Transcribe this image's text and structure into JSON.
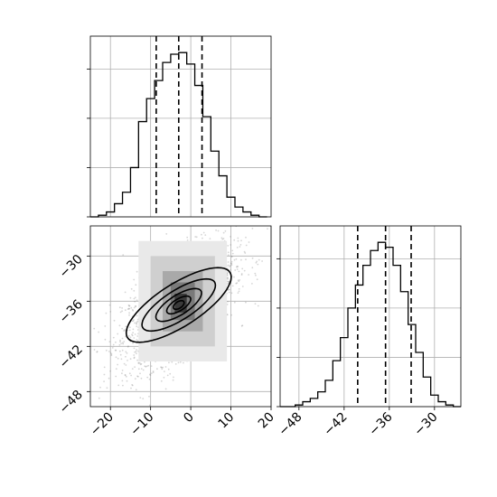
{
  "chart_data": [
    {
      "type": "histogram",
      "panel": "top-left",
      "variable_index": 0,
      "x": [
        -25,
        -23,
        -21,
        -19,
        -17,
        -15,
        -13,
        -11,
        -9,
        -7,
        -5,
        -3,
        -1,
        1,
        3,
        5,
        7,
        9,
        11,
        13,
        15,
        17,
        19
      ],
      "values": [
        0,
        1,
        3,
        8,
        15,
        30,
        58,
        72,
        83,
        94,
        99,
        100,
        93,
        80,
        61,
        40,
        25,
        12,
        6,
        3,
        1,
        0
      ],
      "ylim": [
        0,
        110
      ],
      "xlim": [
        -25,
        20
      ],
      "quantile_lines": [
        -8.6,
        -3.0,
        2.8
      ],
      "y_ticks": [
        0,
        30,
        60,
        90
      ],
      "grid": true
    },
    {
      "type": "scatter",
      "panel": "bottom-left",
      "variables": [
        0,
        1
      ],
      "xlim": [
        -25,
        20
      ],
      "ylim": [
        -50,
        -26
      ],
      "x_ticks": [
        -20,
        -10,
        0,
        10,
        20
      ],
      "x_tick_labels": [
        "−20",
        "−10",
        "0",
        "10",
        "20"
      ],
      "y_ticks": [
        -30,
        -36,
        -42,
        -48
      ],
      "y_tick_labels": [
        "−30",
        "−36",
        "−42",
        "−48"
      ],
      "center": [
        -3.0,
        -36.5
      ],
      "spread": [
        7.0,
        4.0
      ],
      "correlation": 0.6,
      "contour_levels": [
        "outer",
        "second",
        "third",
        "inner",
        "core"
      ],
      "grid": true
    },
    {
      "type": "histogram",
      "panel": "bottom-right",
      "variable_index": 1,
      "x": [
        -50.5,
        -49.5,
        -48.5,
        -47.5,
        -46.5,
        -45.5,
        -44.5,
        -43.5,
        -42.5,
        -41.5,
        -40.5,
        -39.5,
        -38.5,
        -37.5,
        -36.5,
        -35.5,
        -34.5,
        -33.5,
        -32.5,
        -31.5,
        -30.5,
        -29.5,
        -28.5,
        -27.5,
        -26.5
      ],
      "values": [
        0,
        0,
        1,
        3,
        5,
        9,
        16,
        28,
        42,
        60,
        74,
        86,
        95,
        100,
        97,
        86,
        70,
        50,
        33,
        18,
        7,
        3,
        1,
        0
      ],
      "ylim": [
        0,
        110
      ],
      "xlim": [
        -50.5,
        -26.5
      ],
      "quantile_lines": [
        -40.2,
        -36.5,
        -33.1
      ],
      "x_ticks": [
        -48,
        -42,
        -36,
        -30
      ],
      "x_tick_labels": [
        "−48",
        "−42",
        "−36",
        "−30"
      ],
      "y_ticks": [
        0,
        30,
        60,
        90
      ],
      "grid": true
    }
  ]
}
